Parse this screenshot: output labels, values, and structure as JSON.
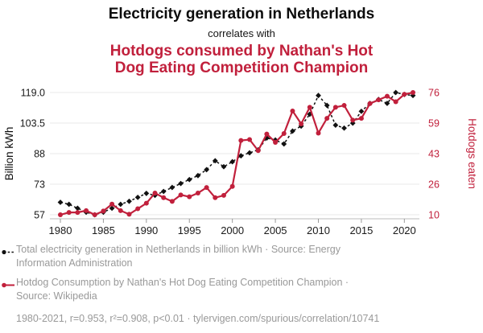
{
  "header": {
    "title": "Electricity generation in Netherlands",
    "connector": "correlates with",
    "subtitle_lines": [
      "Hotdogs consumed by Nathan's Hot",
      "Dog Eating Competition Champion"
    ],
    "subtitle_color": "#c1203c"
  },
  "chart_data": {
    "type": "line",
    "x_range": [
      1980,
      2021
    ],
    "x": [
      1980,
      1981,
      1982,
      1983,
      1984,
      1985,
      1986,
      1987,
      1988,
      1989,
      1990,
      1991,
      1992,
      1993,
      1994,
      1995,
      1996,
      1997,
      1998,
      1999,
      2000,
      2001,
      2002,
      2003,
      2004,
      2005,
      2006,
      2007,
      2008,
      2009,
      2010,
      2011,
      2012,
      2013,
      2014,
      2015,
      2016,
      2017,
      2018,
      2019,
      2020,
      2021
    ],
    "series": [
      {
        "name": "Total electricity generation in Netherlands",
        "unit": "billion kWh",
        "axis": "left",
        "color": "#111111",
        "line_style": "dashed",
        "marker": "diamond",
        "values": [
          63.5,
          62.5,
          60.5,
          58.5,
          57.2,
          58.5,
          60.5,
          62.5,
          64,
          66,
          68,
          67,
          69,
          71,
          73,
          75,
          77,
          80,
          84.5,
          81.5,
          84,
          87,
          88.5,
          90,
          96,
          95,
          93,
          99.5,
          102,
          108,
          117.5,
          112.5,
          102.5,
          101,
          103.5,
          109.5,
          113.5,
          115.5,
          113.5,
          119,
          118,
          117.5
        ]
      },
      {
        "name": "Hotdog Consumption by Nathan's Hot Dog Eating Competition Champion",
        "unit": "hotdogs eaten",
        "axis": "right",
        "color": "#c1203c",
        "line_style": "solid",
        "marker": "circle",
        "values": [
          9.75,
          11,
          11,
          12,
          9.75,
          11.75,
          15.5,
          12,
          10,
          13,
          16,
          21.5,
          19,
          17,
          20.5,
          19.5,
          21.5,
          24.5,
          19,
          20.25,
          25.125,
          50,
          50.5,
          44.5,
          53.5,
          49,
          53.75,
          66,
          59,
          68,
          54,
          62,
          68,
          69,
          61,
          62,
          70,
          72,
          74,
          71,
          75,
          76
        ]
      }
    ],
    "left_axis": {
      "label": "Billion kWh",
      "ylim": [
        57.2,
        119
      ],
      "ticks": [
        "119.0",
        "103.5",
        "88",
        "73",
        "57"
      ]
    },
    "right_axis": {
      "label": "Hotdogs eaten",
      "ylim": [
        9.75,
        76
      ],
      "ticks": [
        "76",
        "59",
        "43",
        "26",
        "10"
      ]
    },
    "x_ticks": [
      "1980",
      "1985",
      "1990",
      "1995",
      "2000",
      "2005",
      "2010",
      "2015",
      "2020"
    ],
    "grid": "horizontal",
    "grid_color": "#e8e8e8",
    "axis_line_color": "#bbbbbb",
    "tick_label_color": "#1a1a1a",
    "legend_position": "bottom"
  },
  "legend": {
    "entries": [
      {
        "series": "electricity",
        "lines": [
          "Total electricity generation in Netherlands in billion kWh · Source: Energy",
          "Information Administration"
        ]
      },
      {
        "series": "hotdogs",
        "lines": [
          "Hotdog Consumption by Nathan's Hot Dog Eating Competition Champion ·",
          "Source: Wikipedia"
        ]
      }
    ],
    "stats": "1980-2021, r=0.953, r²=0.908, p<0.01 · tylervigen.com/spurious/correlation/10741",
    "text_color": "#999999"
  }
}
